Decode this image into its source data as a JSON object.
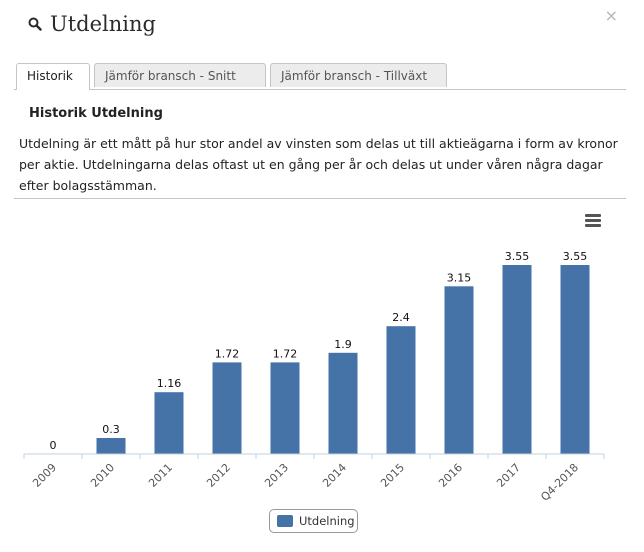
{
  "header": {
    "title": "Utdelning",
    "close_label": "×"
  },
  "tabs": [
    {
      "label": "Historik",
      "active": true
    },
    {
      "label": "Jämför bransch - Snitt",
      "active": false
    },
    {
      "label": "Jämför bransch - Tillväxt",
      "active": false
    }
  ],
  "section": {
    "title": "Historik Utdelning",
    "description": "Utdelning är ett mått på hur stor andel av vinsten som delas ut till aktieägarna i form av kronor per aktie. Utdelningarna delas oftast ut en gång per år och delas ut under våren några dagar efter bolagsstämman."
  },
  "colors": {
    "bar": "#4572a7",
    "axis": "#c0d0e0",
    "text": "#222222"
  },
  "icons": {
    "title": "search-icon",
    "menu": "hamburger-menu-icon"
  },
  "chart_data": {
    "type": "bar",
    "categories": [
      "2009",
      "2010",
      "2011",
      "2012",
      "2013",
      "2014",
      "2015",
      "2016",
      "2017",
      "Q4-2018"
    ],
    "series": [
      {
        "name": "Utdelning",
        "values": [
          0,
          0.3,
          1.16,
          1.72,
          1.72,
          1.9,
          2.4,
          3.15,
          3.55,
          3.55
        ]
      }
    ],
    "data_labels": [
      "0",
      "0.3",
      "1.16",
      "1.72",
      "1.72",
      "1.9",
      "2.4",
      "3.15",
      "3.55",
      "3.55"
    ],
    "ylim": [
      0,
      3.55
    ],
    "grid": false,
    "legend": "bottom-center"
  }
}
